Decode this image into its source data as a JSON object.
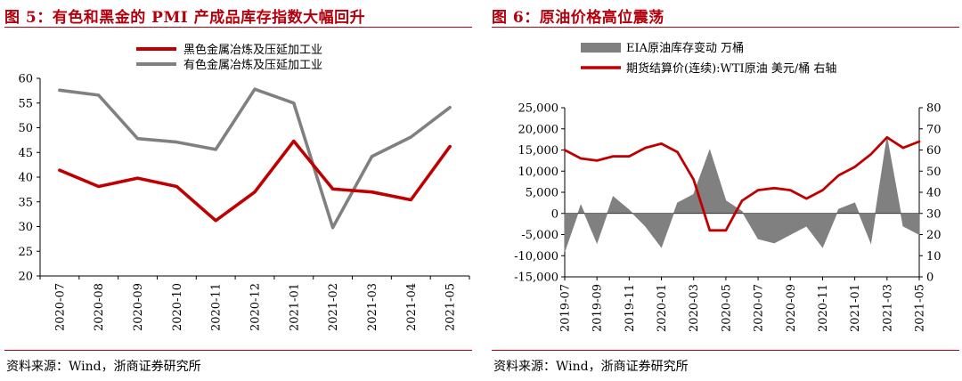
{
  "panels": [
    {
      "title": "图 5：有色和黑金的 PMI 产成品库存指数大幅回升",
      "source": "资料来源：Wind，浙商证券研究所"
    },
    {
      "title": "图 6：原油价格高位震荡",
      "source": "资料来源：Wind，浙商证券研究所"
    }
  ],
  "chart_data": [
    {
      "type": "line",
      "title": "图 5：有色和黑金的 PMI 产成品库存指数大幅回升",
      "categories": [
        "2020-07",
        "2020-08",
        "2020-09",
        "2020-10",
        "2020-11",
        "2020-12",
        "2021-01",
        "2021-02",
        "2021-03",
        "2021-04",
        "2021-05"
      ],
      "ylim": [
        20,
        60
      ],
      "yticks": [
        20,
        25,
        30,
        35,
        40,
        45,
        50,
        55,
        60
      ],
      "grid": false,
      "legend_position": "top",
      "series": [
        {
          "name": "黑色金属冶炼及压延加工业",
          "color": "#c00000",
          "values": [
            41.4,
            38.1,
            39.8,
            38.1,
            31.2,
            37.0,
            47.3,
            37.6,
            37.0,
            35.4,
            46.2
          ]
        },
        {
          "name": "有色金属冶炼及压延加工业",
          "color": "#808080",
          "values": [
            57.6,
            56.6,
            47.8,
            47.1,
            45.6,
            57.8,
            55.0,
            29.8,
            44.2,
            48.1,
            54.1
          ]
        }
      ]
    },
    {
      "type": "line",
      "title": "图 6：原油价格高位震荡",
      "x_labels": [
        "2019-07",
        "2019-09",
        "2019-11",
        "2020-01",
        "2020-03",
        "2020-05",
        "2020-07",
        "2020-09",
        "2020-11",
        "2021-01",
        "2021-03",
        "2021-05"
      ],
      "x_range": [
        "2019-07",
        "2021-05"
      ],
      "ylim_left": [
        -15000,
        25000
      ],
      "yticks_left": [
        -15000,
        -10000,
        -5000,
        0,
        5000,
        10000,
        15000,
        20000,
        25000
      ],
      "yticks_left_labels": [
        "-15,000",
        "-10,000",
        "-5,000",
        "0",
        "5,000",
        "10,000",
        "15,000",
        "20,000",
        "25,000"
      ],
      "ylim_right": [
        0,
        80
      ],
      "yticks_right": [
        0,
        10,
        20,
        30,
        40,
        50,
        60,
        70,
        80
      ],
      "grid": false,
      "legend_position": "top",
      "series": [
        {
          "name": "EIA原油库存变动 万桶",
          "type": "area",
          "axis": "left",
          "color": "#808080",
          "x": [
            "2019-07",
            "2019-08",
            "2019-09",
            "2019-10",
            "2019-11",
            "2019-12",
            "2020-01",
            "2020-02",
            "2020-03",
            "2020-04",
            "2020-05",
            "2020-06",
            "2020-07",
            "2020-08",
            "2020-09",
            "2020-10",
            "2020-11",
            "2020-12",
            "2021-01",
            "2021-02",
            "2021-03",
            "2021-04",
            "2021-05"
          ],
          "values": [
            -9000,
            2000,
            -7000,
            4000,
            800,
            -3000,
            -8000,
            2500,
            4500,
            15000,
            3000,
            500,
            -6000,
            -7000,
            -5000,
            -3000,
            -8000,
            1000,
            2500,
            -7000,
            18000,
            -3000,
            -5000
          ]
        },
        {
          "name": "期货结算价(连续):WTI原油 美元/桶 右轴",
          "type": "line",
          "axis": "right",
          "color": "#c00000",
          "x": [
            "2019-07",
            "2019-08",
            "2019-09",
            "2019-10",
            "2019-11",
            "2019-12",
            "2020-01",
            "2020-02",
            "2020-03",
            "2020-04",
            "2020-05",
            "2020-06",
            "2020-07",
            "2020-08",
            "2020-09",
            "2020-10",
            "2020-11",
            "2020-12",
            "2021-01",
            "2021-02",
            "2021-03",
            "2021-04",
            "2021-05"
          ],
          "values": [
            60,
            56,
            55,
            57,
            57,
            61,
            63,
            59,
            46,
            22,
            22,
            36,
            41,
            42,
            41,
            37,
            41,
            48,
            52,
            58,
            66,
            61,
            64
          ]
        }
      ]
    }
  ]
}
